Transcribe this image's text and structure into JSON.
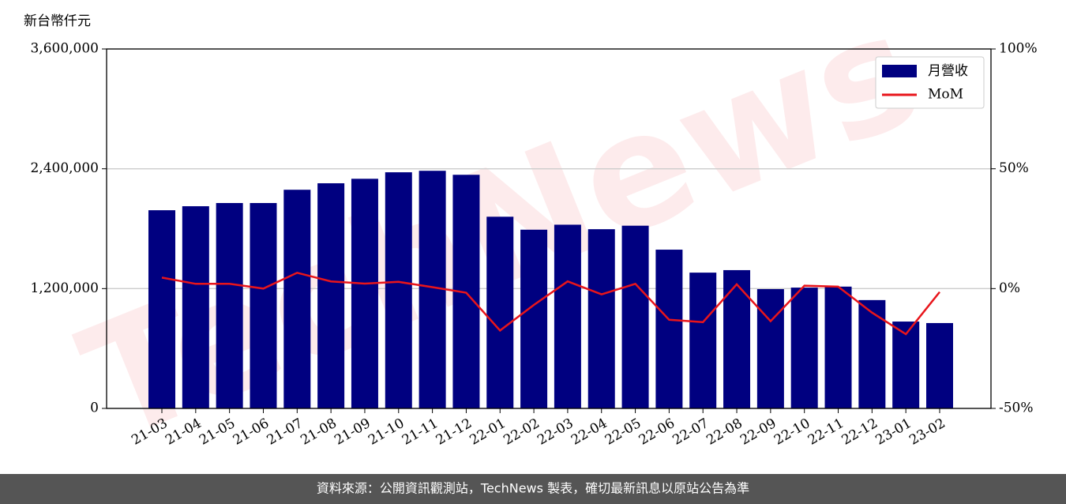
{
  "chart_data": {
    "type": "bar",
    "y_label": "新台幣仟元",
    "watermark": "TechNews",
    "categories": [
      "21-03",
      "21-04",
      "21-05",
      "21-06",
      "21-07",
      "21-08",
      "21-09",
      "21-10",
      "21-11",
      "21-12",
      "22-01",
      "22-02",
      "22-03",
      "22-04",
      "22-05",
      "22-06",
      "22-07",
      "22-08",
      "22-09",
      "22-10",
      "22-11",
      "22-12",
      "23-01",
      "23-02"
    ],
    "series": [
      {
        "name": "月營收",
        "type": "bar",
        "color": "#000080",
        "values": [
          1985000,
          2025000,
          2057000,
          2057000,
          2190000,
          2255000,
          2300000,
          2365000,
          2380000,
          2340000,
          1920000,
          1790000,
          1840000,
          1795000,
          1830000,
          1590000,
          1360000,
          1385000,
          1195000,
          1210000,
          1220000,
          1085000,
          870000,
          855000
        ]
      },
      {
        "name": "MoM",
        "type": "line",
        "color": "#e8151b",
        "axis": "y2",
        "values": [
          4.6,
          2.0,
          2.0,
          0,
          6.6,
          3.0,
          2.1,
          2.8,
          0.6,
          -1.7,
          -17.5,
          -6.8,
          3.0,
          -2.4,
          2.0,
          -13,
          -14,
          1.8,
          -13.6,
          1.2,
          0.8,
          -10,
          -19,
          -1.4
        ]
      }
    ],
    "ylim": [
      0,
      3600000
    ],
    "yticks": [
      0,
      {
        "value": 1200000,
        "label": "1,200,000"
      },
      {
        "value": 2400000,
        "label": "2,400,000"
      },
      {
        "value": 3600000,
        "label": "3,600,000"
      }
    ],
    "y2lim": [
      -50,
      100
    ],
    "y2ticks": [
      {
        "value": -50,
        "label": "-50%"
      },
      {
        "value": 0,
        "label": "0%"
      },
      {
        "value": 50,
        "label": "50%"
      },
      {
        "value": 100,
        "label": "100%"
      }
    ],
    "grid": true,
    "legend": "upper right"
  },
  "footer": "資料來源：公開資訊觀測站，TechNews 製表，確切最新訊息以原站公告為準"
}
